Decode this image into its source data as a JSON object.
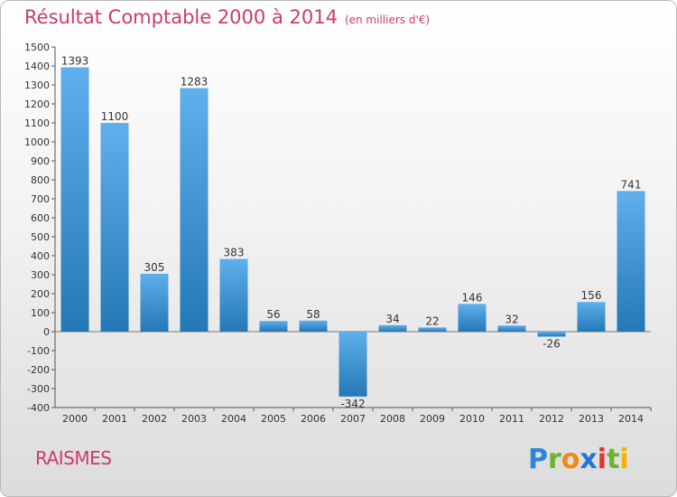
{
  "title": "Résultat Comptable 2000 à 2014",
  "unit_label": "(en milliers d'€)",
  "city": "RAISMES",
  "brand": "Proxiti",
  "colors": {
    "title": "#cc3b6b",
    "bar_light": "#5fb0ec",
    "bar_dark": "#2378b5",
    "logo_p": "#2e86d8",
    "logo_r": "#6cb42c",
    "logo_o": "#f08a12",
    "logo_x": "#1f78d1",
    "logo_i": "#e5342a",
    "logo_t": "#6cb42c",
    "logo_i2": "#f2b400"
  },
  "chart_data": {
    "type": "bar",
    "title": "Résultat Comptable 2000 à 2014",
    "subtitle": "(en milliers d'€)",
    "xlabel": "",
    "ylabel": "",
    "categories": [
      "2000",
      "2001",
      "2002",
      "2003",
      "2004",
      "2005",
      "2006",
      "2007",
      "2008",
      "2009",
      "2010",
      "2011",
      "2012",
      "2013",
      "2014"
    ],
    "values": [
      1393,
      1100,
      305,
      1283,
      383,
      56,
      58,
      -342,
      34,
      22,
      146,
      32,
      -26,
      156,
      741
    ],
    "ylim": [
      -400,
      1500
    ],
    "yticks": [
      -400,
      -300,
      -200,
      -100,
      0,
      100,
      200,
      300,
      400,
      500,
      600,
      700,
      800,
      900,
      1000,
      1100,
      1200,
      1300,
      1400,
      1500
    ],
    "grid": false,
    "legend": "none"
  }
}
